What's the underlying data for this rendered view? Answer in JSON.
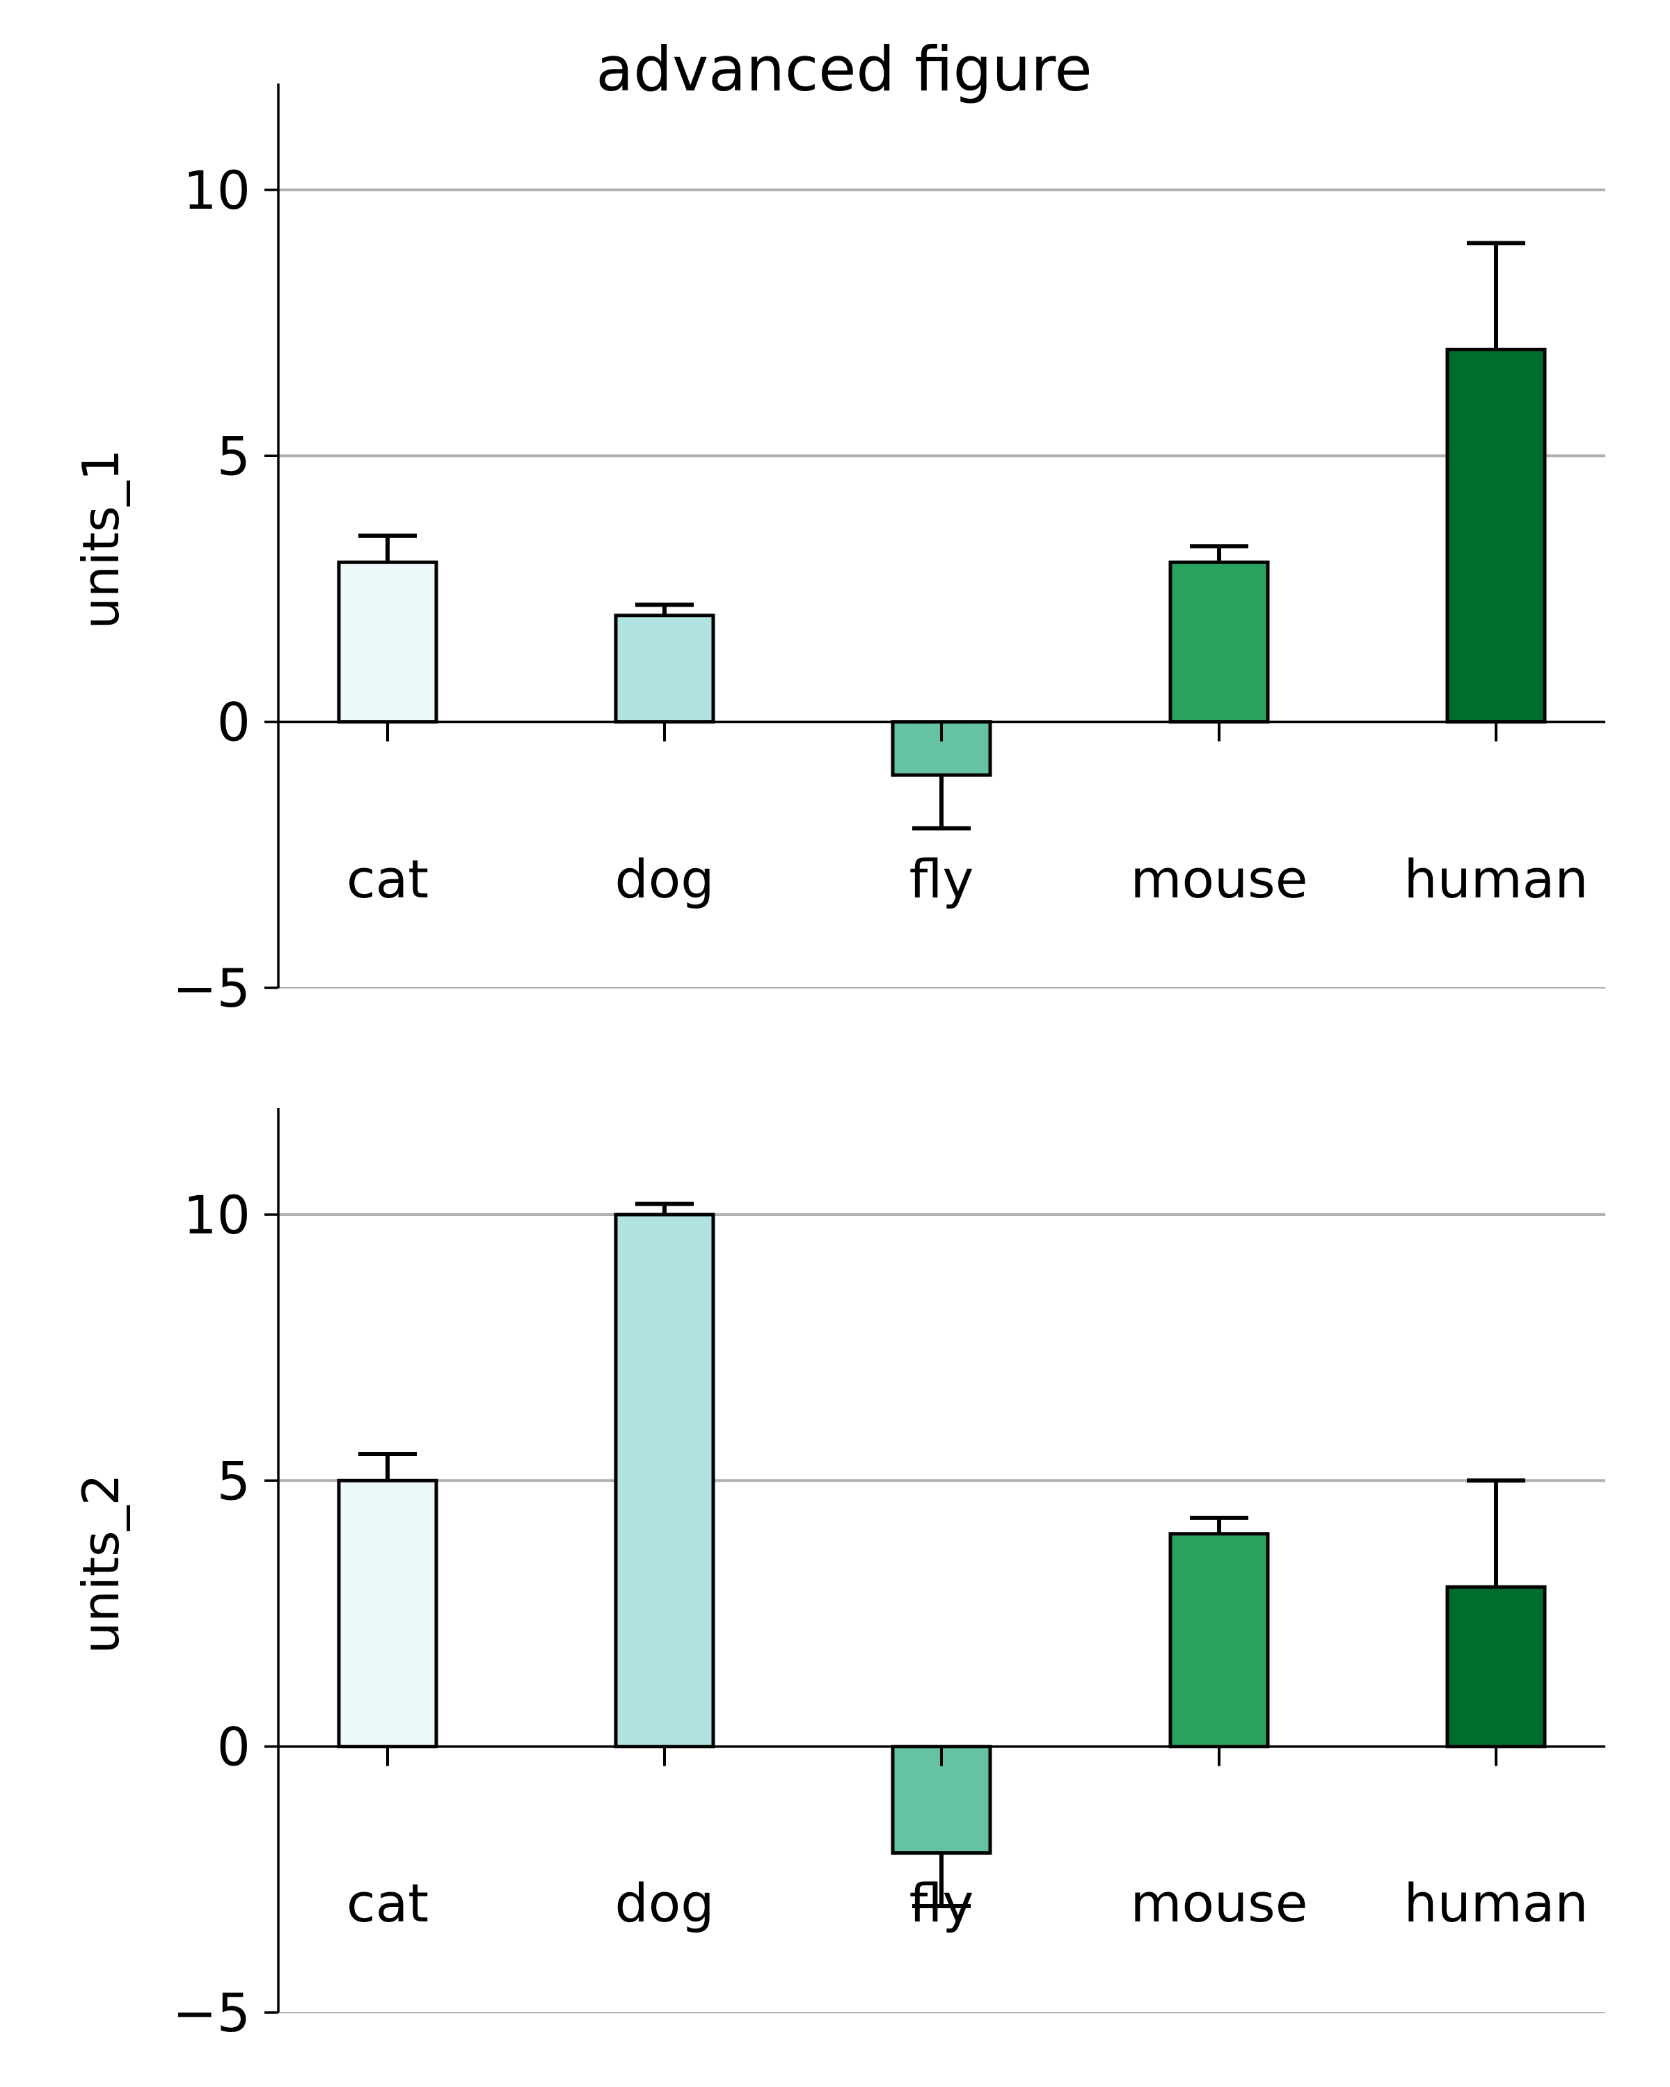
{
  "figure": {
    "title": "advanced figure"
  },
  "chart_data": [
    {
      "type": "bar",
      "ylabel": "units_1",
      "xlabel": "",
      "categories": [
        "cat",
        "dog",
        "fly",
        "mouse",
        "human"
      ],
      "values": [
        3,
        2,
        -1,
        3,
        7
      ],
      "errors": [
        0.5,
        0.2,
        1,
        0.3,
        2
      ],
      "colors": [
        "#edf8fb",
        "#b2e2e2",
        "#66c2a4",
        "#2ca25f",
        "#006d2c"
      ],
      "ylim": [
        -5,
        12
      ],
      "yticks": [
        -5,
        0,
        5,
        10
      ],
      "ytick_labels": [
        "−5",
        "0",
        "5",
        "10"
      ],
      "grid": "y-major",
      "legend": "none"
    },
    {
      "type": "bar",
      "ylabel": "units_2",
      "xlabel": "",
      "categories": [
        "cat",
        "dog",
        "fly",
        "mouse",
        "human"
      ],
      "values": [
        5,
        10,
        -2,
        4,
        3
      ],
      "errors": [
        0.5,
        0.2,
        1,
        0.3,
        2
      ],
      "colors": [
        "#edf8fb",
        "#b2e2e2",
        "#66c2a4",
        "#2ca25f",
        "#006d2c"
      ],
      "ylim": [
        -5,
        12
      ],
      "yticks": [
        -5,
        0,
        5,
        10
      ],
      "ytick_labels": [
        "−5",
        "0",
        "5",
        "10"
      ],
      "grid": "y-major",
      "legend": "none"
    }
  ]
}
